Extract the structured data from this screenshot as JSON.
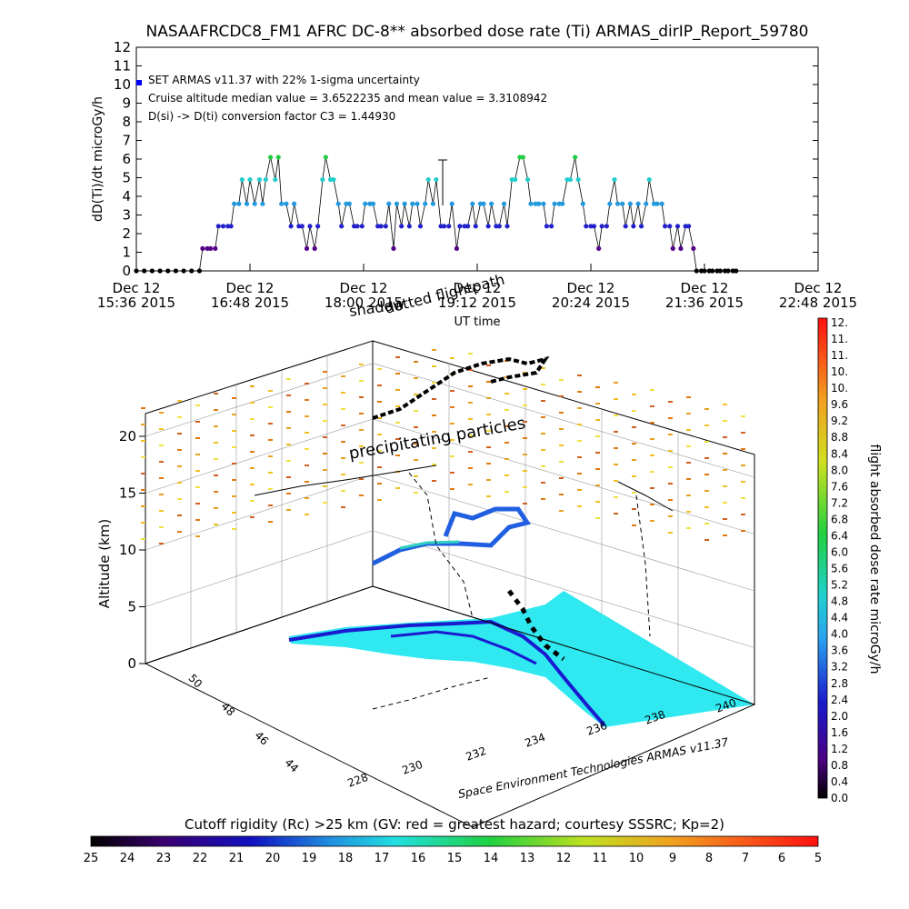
{
  "chart_data": [
    {
      "type": "scatter",
      "title": "NASAAFRCDC8_FM1 AFRC DC-8** absorbed dose rate (Ti) ARMAS_dirIP_Report_59780",
      "xlabel": "UT time",
      "ylabel": "dD(Ti)/dt microGy/h",
      "ylim": [
        0,
        12
      ],
      "yticks": [
        "0",
        "1",
        "2",
        "3",
        "4",
        "5",
        "6",
        "7",
        "8",
        "9",
        "10",
        "11",
        "12"
      ],
      "xticks": [
        {
          "top": "Dec 12",
          "bottom": "15:36 2015"
        },
        {
          "top": "Dec 12",
          "bottom": "16:48 2015"
        },
        {
          "top": "Dec 12",
          "bottom": "18:00 2015"
        },
        {
          "top": "Dec 12",
          "bottom": "19:12 2015"
        },
        {
          "top": "Dec 12",
          "bottom": "20:24 2015"
        },
        {
          "top": "Dec 12",
          "bottom": "21:36 2015"
        },
        {
          "top": "Dec 12",
          "bottom": "22:48 2015"
        }
      ],
      "xlim_minutes_after_1536": [
        0,
        432
      ],
      "annotations": [
        "SET ARMAS v11.37 with 22% 1-sigma uncertainty",
        "Cruise altitude median value = 3.6522235 and mean value = 3.3108942",
        "D(si) -> D(ti) conversion factor C3 = 1.44930"
      ],
      "point_colors": {
        "0.0": "#000000",
        "1.2": "#550088",
        "2.4": "#2222cc",
        "3.6": "#2299dd",
        "4.9": "#22cccc",
        "6.1": "#22cc44"
      },
      "series": [
        {
          "x_minutes_after_1536": [
            0,
            5,
            10,
            15,
            20,
            25,
            30,
            35,
            40,
            42,
            45,
            47,
            50,
            52,
            55,
            58,
            60,
            62,
            65,
            67,
            70,
            72,
            75,
            78,
            80,
            82,
            85,
            88,
            90,
            92,
            95,
            98,
            100,
            103,
            105,
            108,
            110,
            113,
            115,
            118,
            120,
            123,
            125,
            128,
            130,
            133,
            135,
            138,
            140,
            143,
            145,
            148,
            150,
            153,
            155,
            158,
            160,
            163,
            165,
            168,
            170,
            173,
            175,
            178,
            180,
            183,
            185,
            188,
            190,
            193,
            195,
            198,
            200,
            203,
            205,
            208,
            210,
            213,
            215,
            218,
            220,
            223,
            225,
            228,
            230,
            233,
            235,
            238,
            240,
            243,
            245,
            248,
            250,
            253,
            255,
            258,
            260,
            263,
            265,
            268,
            270,
            273,
            275,
            278,
            280,
            283,
            285,
            288,
            290,
            293,
            295,
            298,
            300,
            303,
            305,
            308,
            310,
            313,
            315,
            318,
            320,
            323,
            325,
            328,
            330,
            333,
            335,
            338,
            340,
            343,
            345,
            348,
            350,
            353,
            355,
            358,
            360,
            363,
            365,
            368,
            370,
            373,
            375,
            378,
            380
          ],
          "values": [
            0,
            0,
            0,
            0,
            0,
            0,
            0,
            0,
            0,
            1.2,
            1.2,
            1.2,
            1.2,
            2.4,
            2.4,
            2.4,
            2.4,
            3.6,
            3.6,
            4.9,
            3.6,
            4.9,
            3.6,
            4.9,
            3.6,
            4.9,
            6.1,
            4.9,
            6.1,
            3.6,
            3.6,
            2.4,
            3.6,
            2.4,
            2.4,
            1.2,
            2.4,
            1.2,
            2.4,
            4.9,
            6.1,
            4.9,
            4.9,
            3.6,
            2.4,
            3.6,
            3.6,
            2.4,
            2.4,
            2.4,
            3.6,
            3.6,
            3.6,
            2.4,
            2.4,
            2.4,
            3.6,
            1.2,
            3.6,
            2.4,
            3.6,
            2.4,
            3.6,
            3.6,
            2.4,
            3.6,
            4.9,
            3.6,
            4.9,
            2.4,
            2.4,
            2.4,
            3.6,
            1.2,
            2.4,
            2.4,
            2.4,
            3.6,
            2.4,
            3.6,
            3.6,
            2.4,
            3.6,
            2.4,
            2.4,
            3.6,
            2.4,
            4.9,
            4.9,
            6.1,
            6.1,
            4.9,
            3.6,
            3.6,
            3.6,
            3.6,
            2.4,
            2.4,
            3.6,
            3.6,
            3.6,
            4.9,
            4.9,
            6.1,
            4.9,
            3.6,
            2.4,
            2.4,
            2.4,
            1.2,
            2.4,
            2.4,
            3.6,
            4.9,
            3.6,
            3.6,
            2.4,
            3.6,
            2.4,
            3.6,
            2.4,
            3.6,
            4.9,
            3.6,
            3.6,
            3.6,
            2.4,
            2.4,
            1.2,
            2.4,
            1.2,
            2.4,
            2.4,
            1.2,
            0,
            0,
            0,
            0,
            0,
            0,
            0,
            0,
            0,
            0,
            0,
            0,
            0
          ]
        }
      ]
    },
    {
      "type": "scatter",
      "subtype": "3d-flight-track",
      "zlabel": "Altitude (km)",
      "zticks": [
        "0",
        "5",
        "10",
        "15",
        "20"
      ],
      "zlim": [
        0,
        22
      ],
      "lat_ticks": [
        "44",
        "46",
        "48",
        "50"
      ],
      "lon_ticks": [
        "228",
        "230",
        "232",
        "234",
        "236",
        "238",
        "240"
      ],
      "annotations": [
        "precipitating particles",
        "shadow",
        "dotted flightpath",
        "Dec 12"
      ],
      "caption": "Space Environment Technologies ARMAS v11.37",
      "colorbar": {
        "label": "flight absorbed dose rate microGy/h",
        "ticks": [
          "12.",
          "11.",
          "11.",
          "10.",
          "10.",
          "9.6",
          "9.2",
          "8.8",
          "8.4",
          "8.0",
          "7.6",
          "7.2",
          "6.8",
          "6.4",
          "6.0",
          "5.6",
          "5.2",
          "4.8",
          "4.4",
          "4.0",
          "3.6",
          "3.2",
          "2.8",
          "2.4",
          "2.0",
          "1.6",
          "1.2",
          "0.8",
          "0.4",
          "0.0"
        ]
      }
    },
    {
      "type": "heatmap",
      "subtype": "colorbar",
      "title": "Cutoff rigidity (Rc) >25 km (GV: red = greatest hazard; courtesy SSSRC; Kp=2)",
      "ticks": [
        "25",
        "24",
        "23",
        "22",
        "21",
        "20",
        "19",
        "18",
        "17",
        "16",
        "15",
        "14",
        "13",
        "12",
        "11",
        "10",
        "9",
        "8",
        "7",
        "6",
        "5"
      ]
    }
  ]
}
